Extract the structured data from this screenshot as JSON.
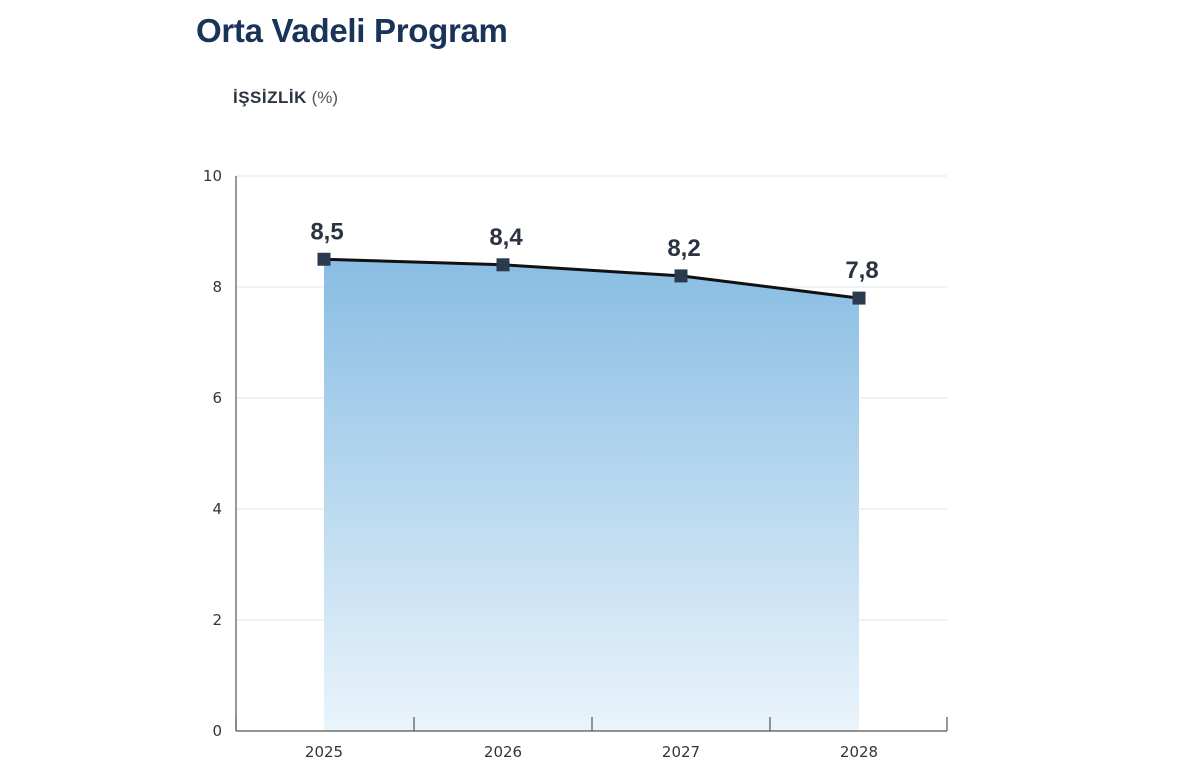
{
  "header": {
    "title": "Orta Vadeli Program",
    "subtitle_bold": "İŞSİZLİK",
    "subtitle_unit": "(%)"
  },
  "colors": {
    "title": "#1a3358",
    "line": "#111111",
    "marker": "#2b3a4e",
    "area_top": "#88bde3",
    "area_bottom": "#eaf4fb",
    "grid": "#e6e9ee",
    "axis": "#555555"
  },
  "chart_data": {
    "type": "area",
    "categories": [
      "2025",
      "2026",
      "2027",
      "2028"
    ],
    "values": [
      8.5,
      8.4,
      8.2,
      7.8
    ],
    "data_labels": [
      "8,5",
      "8,4",
      "8,2",
      "7,8"
    ],
    "y_ticks": [
      0,
      2,
      4,
      6,
      8,
      10
    ],
    "ylim": [
      0,
      10
    ],
    "grid": true,
    "title": "",
    "xlabel": "",
    "ylabel": "İŞSİZLİK (%)"
  }
}
